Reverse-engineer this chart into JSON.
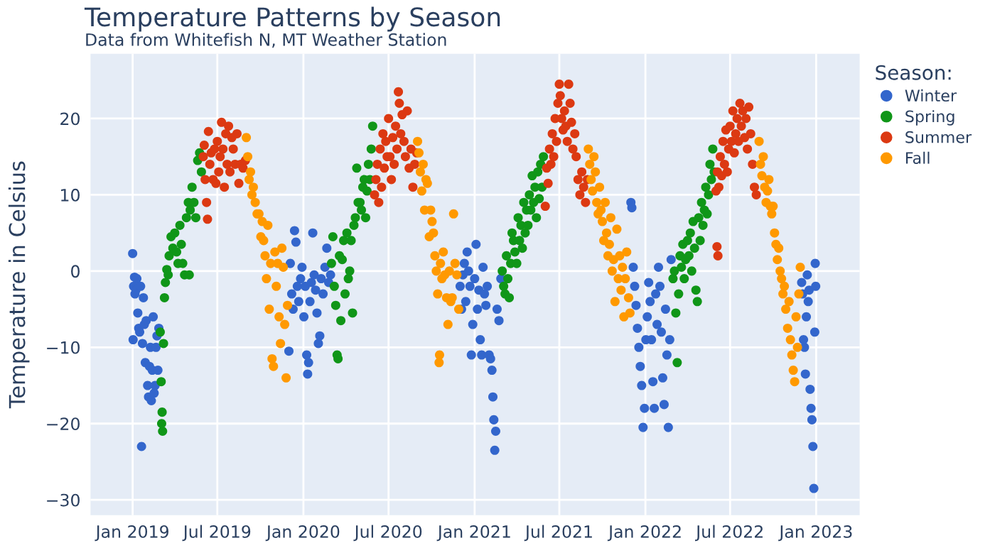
{
  "chart_data": {
    "type": "scatter",
    "title": "Temperature Patterns by Season",
    "subtitle": "Data from Whitefish N, MT Weather Station",
    "ylabel": "Temperature in Celsius",
    "legend_title": "Season:",
    "legend": "right",
    "grid": true,
    "marker": "circle",
    "xlim": [
      "2018-10-03",
      "2023-04-04"
    ],
    "ylim": [
      -32,
      28.5
    ],
    "xticks": [
      {
        "value": "2019-01-01",
        "label": "Jan 2019"
      },
      {
        "value": "2019-07-01",
        "label": "Jul 2019"
      },
      {
        "value": "2020-01-01",
        "label": "Jan 2020"
      },
      {
        "value": "2020-07-01",
        "label": "Jul 2020"
      },
      {
        "value": "2021-01-01",
        "label": "Jan 2021"
      },
      {
        "value": "2021-07-01",
        "label": "Jul 2021"
      },
      {
        "value": "2022-01-01",
        "label": "Jan 2022"
      },
      {
        "value": "2022-07-01",
        "label": "Jul 2022"
      },
      {
        "value": "2023-01-01",
        "label": "Jan 2023"
      }
    ],
    "yticks": [
      {
        "value": -30,
        "label": "−30"
      },
      {
        "value": -20,
        "label": "−20"
      },
      {
        "value": -10,
        "label": "−10"
      },
      0,
      10,
      20
    ],
    "series": [
      {
        "name": "Winter",
        "color": "#3366cc",
        "x": [
          "2019-01-01",
          "2019-01-02",
          "2019-01-03",
          "2019-01-05",
          "2019-01-06",
          "2019-01-08",
          "2019-01-10",
          "2019-01-12",
          "2019-01-14",
          "2019-01-16",
          "2019-01-18",
          "2019-01-20",
          "2019-01-22",
          "2019-01-24",
          "2019-01-26",
          "2019-01-28",
          "2019-01-30",
          "2019-02-02",
          "2019-02-04",
          "2019-02-06",
          "2019-02-08",
          "2019-02-10",
          "2019-02-12",
          "2019-02-14",
          "2019-02-16",
          "2019-02-18",
          "2019-02-20",
          "2019-02-22",
          "2019-02-24",
          "2019-02-26",
          "2019-12-01",
          "2019-12-04",
          "2019-12-07",
          "2019-12-10",
          "2019-12-13",
          "2019-12-16",
          "2019-12-19",
          "2019-12-22",
          "2019-12-26",
          "2019-12-29",
          "2020-01-02",
          "2020-01-05",
          "2020-01-08",
          "2020-01-10",
          "2020-01-12",
          "2020-01-15",
          "2020-01-18",
          "2020-01-21",
          "2020-01-24",
          "2020-01-27",
          "2020-01-30",
          "2020-02-02",
          "2020-02-05",
          "2020-02-08",
          "2020-02-12",
          "2020-02-16",
          "2020-02-20",
          "2020-02-24",
          "2020-02-28",
          "2020-12-01",
          "2020-12-04",
          "2020-12-07",
          "2020-12-10",
          "2020-12-13",
          "2020-12-16",
          "2020-12-19",
          "2020-12-22",
          "2020-12-25",
          "2020-12-28",
          "2021-01-01",
          "2021-01-04",
          "2021-01-07",
          "2021-01-10",
          "2021-01-13",
          "2021-01-16",
          "2021-01-19",
          "2021-01-22",
          "2021-01-25",
          "2021-01-28",
          "2021-02-01",
          "2021-02-04",
          "2021-02-07",
          "2021-02-09",
          "2021-02-11",
          "2021-02-13",
          "2021-02-15",
          "2021-02-18",
          "2021-02-22",
          "2021-02-26",
          "2021-12-01",
          "2021-12-03",
          "2021-12-06",
          "2021-12-09",
          "2021-12-12",
          "2021-12-15",
          "2021-12-18",
          "2021-12-21",
          "2021-12-24",
          "2021-12-27",
          "2021-12-30",
          "2022-01-02",
          "2022-01-05",
          "2022-01-08",
          "2022-01-11",
          "2022-01-14",
          "2022-01-17",
          "2022-01-20",
          "2022-01-23",
          "2022-01-26",
          "2022-01-29",
          "2022-02-01",
          "2022-02-04",
          "2022-02-07",
          "2022-02-10",
          "2022-02-13",
          "2022-02-16",
          "2022-02-19",
          "2022-02-22",
          "2022-02-25",
          "2022-12-01",
          "2022-12-03",
          "2022-12-05",
          "2022-12-07",
          "2022-12-09",
          "2022-12-11",
          "2022-12-13",
          "2022-12-15",
          "2022-12-17",
          "2022-12-19",
          "2022-12-21",
          "2022-12-23",
          "2022-12-25",
          "2022-12-27",
          "2022-12-29",
          "2022-12-30",
          "2022-12-31"
        ],
        "values": [
          2.3,
          -9,
          -2,
          -0.8,
          -3,
          -2.5,
          -1,
          -5.5,
          -7.5,
          -8,
          -2,
          -23,
          -9.5,
          -3.5,
          -7,
          -12,
          -6.5,
          -15,
          -16.5,
          -12.5,
          -10,
          -17,
          -13,
          -6,
          -16,
          -15,
          -10,
          -8.5,
          -13,
          -7.5,
          -10.5,
          1,
          -3,
          -5,
          5.3,
          3.8,
          -2,
          -4,
          -1,
          0.5,
          -6,
          -2,
          -11,
          -13.5,
          -12,
          -4,
          -1.5,
          5,
          -0.5,
          -2.5,
          -5.5,
          -9.5,
          -8.5,
          -1,
          -3,
          0.5,
          3,
          -1.5,
          -0.5,
          -2,
          -5,
          -0.5,
          1,
          -4,
          2.5,
          0,
          -2,
          -11,
          -7,
          -1,
          3.5,
          -5,
          -2.5,
          -9,
          -11,
          0.5,
          -3,
          -4.5,
          -2,
          -11,
          -11.5,
          -13,
          -16.5,
          -19.5,
          -23.5,
          -21,
          -5,
          -6.5,
          -1,
          9,
          8.3,
          0.5,
          -2,
          -4.5,
          -7.5,
          -10,
          -12.5,
          -15,
          -20.5,
          -18,
          -9,
          -6,
          -1.5,
          -4,
          -9,
          -14.5,
          -18,
          -3,
          -7,
          0.5,
          -2,
          -8,
          -14,
          -17.5,
          -5,
          -11,
          -20.5,
          -9,
          1.5,
          -1.5,
          -3,
          -9,
          -10,
          -13.5,
          -6,
          -0.5,
          -4,
          -2.5,
          -15.5,
          -18,
          -19.5,
          -23,
          -28.5,
          -8,
          1,
          -2
        ]
      },
      {
        "name": "Spring",
        "color": "#109618",
        "x": [
          "2019-03-01",
          "2019-03-03",
          "2019-03-04",
          "2019-03-05",
          "2019-03-06",
          "2019-03-08",
          "2019-03-10",
          "2019-03-12",
          "2019-03-15",
          "2019-03-18",
          "2019-03-20",
          "2019-03-24",
          "2019-03-28",
          "2019-04-01",
          "2019-04-05",
          "2019-04-08",
          "2019-04-12",
          "2019-04-15",
          "2019-04-18",
          "2019-04-22",
          "2019-04-26",
          "2019-04-30",
          "2019-05-02",
          "2019-05-04",
          "2019-05-08",
          "2019-05-12",
          "2019-05-16",
          "2019-05-20",
          "2019-05-24",
          "2019-05-28",
          "2020-03-01",
          "2020-03-04",
          "2020-03-07",
          "2020-03-10",
          "2020-03-13",
          "2020-03-15",
          "2020-03-18",
          "2020-03-21",
          "2020-03-24",
          "2020-03-27",
          "2020-03-30",
          "2020-04-03",
          "2020-04-06",
          "2020-04-09",
          "2020-04-12",
          "2020-04-15",
          "2020-04-18",
          "2020-04-21",
          "2020-04-24",
          "2020-04-27",
          "2020-05-01",
          "2020-05-04",
          "2020-05-07",
          "2020-05-10",
          "2020-05-13",
          "2020-05-16",
          "2020-05-19",
          "2020-05-22",
          "2020-05-25",
          "2020-05-28",
          "2021-03-01",
          "2021-03-04",
          "2021-03-07",
          "2021-03-10",
          "2021-03-13",
          "2021-03-16",
          "2021-03-19",
          "2021-03-22",
          "2021-03-25",
          "2021-03-28",
          "2021-04-01",
          "2021-04-04",
          "2021-04-07",
          "2021-04-10",
          "2021-04-13",
          "2021-04-16",
          "2021-04-19",
          "2021-04-22",
          "2021-04-25",
          "2021-04-28",
          "2021-05-01",
          "2021-05-04",
          "2021-05-07",
          "2021-05-10",
          "2021-05-13",
          "2021-05-16",
          "2021-05-19",
          "2021-05-22",
          "2021-05-25",
          "2021-05-28",
          "2022-03-01",
          "2022-03-04",
          "2022-03-07",
          "2022-03-10",
          "2022-03-13",
          "2022-03-16",
          "2022-03-19",
          "2022-03-22",
          "2022-03-25",
          "2022-03-28",
          "2022-04-01",
          "2022-04-04",
          "2022-04-07",
          "2022-04-10",
          "2022-04-13",
          "2022-04-16",
          "2022-04-19",
          "2022-04-22",
          "2022-04-25",
          "2022-04-28",
          "2022-05-01",
          "2022-05-04",
          "2022-05-07",
          "2022-05-10",
          "2022-05-13",
          "2022-05-16",
          "2022-05-19",
          "2022-05-22",
          "2022-05-25",
          "2022-05-28"
        ],
        "values": [
          -8,
          -14.5,
          -20,
          -18.5,
          -21,
          -9.5,
          -3.5,
          -1.5,
          0.2,
          -0.5,
          2,
          4.5,
          3,
          5,
          2.5,
          1,
          6,
          3.5,
          1,
          -0.5,
          7,
          9,
          -0.5,
          8,
          11,
          9,
          7,
          14.5,
          15.5,
          13,
          1,
          4.5,
          -2,
          -4.5,
          -11,
          -11.5,
          2,
          -6.5,
          1.5,
          4,
          -3,
          5,
          -1,
          0,
          4,
          -5.5,
          6,
          7,
          13.5,
          9,
          9,
          8,
          11,
          12,
          7,
          10.5,
          14,
          12,
          16,
          19,
          0,
          -2,
          -3,
          2,
          -1,
          -3.5,
          1,
          5,
          4,
          2.5,
          1,
          7,
          4,
          6,
          3,
          9,
          5,
          8,
          6,
          10,
          8,
          12.5,
          9,
          11,
          7,
          13,
          9.5,
          14,
          11,
          15,
          -1,
          0,
          -5.5,
          -12,
          -3,
          2,
          0.5,
          3.5,
          -1,
          1.5,
          4,
          2,
          5,
          0,
          6.5,
          3,
          -2.5,
          -4,
          7,
          4,
          9,
          6,
          8,
          11,
          7.5,
          10,
          14,
          12,
          16,
          13
        ]
      },
      {
        "name": "Summer",
        "color": "#dc3912",
        "x": [
          "2019-06-01",
          "2019-06-03",
          "2019-06-05",
          "2019-06-08",
          "2019-06-10",
          "2019-06-12",
          "2019-06-15",
          "2019-06-18",
          "2019-06-22",
          "2019-06-25",
          "2019-06-28",
          "2019-07-01",
          "2019-07-04",
          "2019-07-07",
          "2019-07-10",
          "2019-07-13",
          "2019-07-16",
          "2019-07-19",
          "2019-07-22",
          "2019-07-25",
          "2019-07-28",
          "2019-08-01",
          "2019-08-04",
          "2019-08-08",
          "2019-08-12",
          "2019-08-16",
          "2019-08-20",
          "2019-08-25",
          "2019-08-30",
          "2020-06-01",
          "2020-06-04",
          "2020-06-07",
          "2020-06-10",
          "2020-06-13",
          "2020-06-16",
          "2020-06-19",
          "2020-06-22",
          "2020-06-25",
          "2020-06-28",
          "2020-07-01",
          "2020-07-04",
          "2020-07-07",
          "2020-07-10",
          "2020-07-13",
          "2020-07-16",
          "2020-07-19",
          "2020-07-22",
          "2020-07-24",
          "2020-07-27",
          "2020-07-30",
          "2020-08-03",
          "2020-08-06",
          "2020-08-10",
          "2020-08-14",
          "2020-08-18",
          "2020-08-22",
          "2020-08-26",
          "2020-08-30",
          "2021-06-01",
          "2021-06-04",
          "2021-06-07",
          "2021-06-10",
          "2021-06-13",
          "2021-06-16",
          "2021-06-19",
          "2021-06-22",
          "2021-06-25",
          "2021-06-28",
          "2021-07-01",
          "2021-07-03",
          "2021-07-06",
          "2021-07-09",
          "2021-07-12",
          "2021-07-15",
          "2021-07-18",
          "2021-07-21",
          "2021-07-24",
          "2021-07-27",
          "2021-07-30",
          "2021-08-03",
          "2021-08-06",
          "2021-08-10",
          "2021-08-14",
          "2021-08-18",
          "2021-08-22",
          "2021-08-26",
          "2021-08-30",
          "2022-06-01",
          "2022-06-03",
          "2022-06-04",
          "2022-06-05",
          "2022-06-07",
          "2022-06-10",
          "2022-06-13",
          "2022-06-16",
          "2022-06-19",
          "2022-06-22",
          "2022-06-25",
          "2022-06-28",
          "2022-07-01",
          "2022-07-04",
          "2022-07-07",
          "2022-07-10",
          "2022-07-13",
          "2022-07-16",
          "2022-07-19",
          "2022-07-22",
          "2022-07-25",
          "2022-07-28",
          "2022-08-01",
          "2022-08-04",
          "2022-08-07",
          "2022-08-10",
          "2022-08-14",
          "2022-08-18",
          "2022-08-22",
          "2022-08-26"
        ],
        "values": [
          15,
          16.5,
          12,
          9,
          6.8,
          18.3,
          14,
          15.5,
          12,
          16,
          11.5,
          17,
          13,
          15,
          19.5,
          16,
          11,
          18,
          14,
          19,
          13,
          17.5,
          16,
          14,
          18,
          11.5,
          14,
          13.5,
          14.5,
          10,
          12,
          14,
          9,
          16,
          11,
          18,
          13.5,
          17,
          15,
          20,
          15,
          12,
          17.5,
          14,
          19,
          16,
          23.5,
          22,
          18,
          20.5,
          17,
          15,
          21,
          13.5,
          16,
          11,
          14,
          15.5,
          8.5,
          13.5,
          11.5,
          16,
          14,
          18,
          15,
          20,
          17,
          22,
          24.5,
          23,
          20,
          18.5,
          21,
          19,
          17,
          24.5,
          22,
          19.5,
          16,
          18,
          15,
          12,
          10,
          13,
          11,
          9,
          12,
          10.5,
          3.2,
          13,
          2,
          11,
          15,
          12.5,
          17,
          14,
          18.5,
          13,
          16,
          19,
          17,
          21,
          15.5,
          18,
          20,
          17,
          22,
          19,
          21,
          17.5,
          20,
          16,
          21.5,
          18,
          14,
          11,
          10
        ]
      },
      {
        "name": "Fall",
        "color": "#ff9900",
        "x": [
          "2019-09-01",
          "2019-09-04",
          "2019-09-07",
          "2019-09-10",
          "2019-09-13",
          "2019-09-16",
          "2019-09-20",
          "2019-09-24",
          "2019-09-28",
          "2019-10-02",
          "2019-10-05",
          "2019-10-08",
          "2019-10-11",
          "2019-10-14",
          "2019-10-17",
          "2019-10-20",
          "2019-10-23",
          "2019-10-26",
          "2019-10-29",
          "2019-11-01",
          "2019-11-04",
          "2019-11-07",
          "2019-11-10",
          "2019-11-13",
          "2019-11-16",
          "2019-11-19",
          "2019-11-22",
          "2019-11-25",
          "2019-11-28",
          "2020-09-01",
          "2020-09-04",
          "2020-09-07",
          "2020-09-10",
          "2020-09-13",
          "2020-09-16",
          "2020-09-19",
          "2020-09-22",
          "2020-09-26",
          "2020-09-29",
          "2020-10-02",
          "2020-10-05",
          "2020-10-08",
          "2020-10-11",
          "2020-10-14",
          "2020-10-17",
          "2020-10-18",
          "2020-10-20",
          "2020-10-23",
          "2020-10-26",
          "2020-10-29",
          "2020-11-02",
          "2020-11-05",
          "2020-11-08",
          "2020-11-11",
          "2020-11-14",
          "2020-11-17",
          "2020-11-20",
          "2020-11-24",
          "2020-11-28",
          "2021-09-01",
          "2021-09-04",
          "2021-09-07",
          "2021-09-10",
          "2021-09-13",
          "2021-09-16",
          "2021-09-19",
          "2021-09-22",
          "2021-09-25",
          "2021-09-28",
          "2021-10-01",
          "2021-10-04",
          "2021-10-07",
          "2021-10-10",
          "2021-10-13",
          "2021-10-16",
          "2021-10-19",
          "2021-10-22",
          "2021-10-25",
          "2021-10-28",
          "2021-11-01",
          "2021-11-04",
          "2021-11-07",
          "2021-11-10",
          "2021-11-13",
          "2021-11-16",
          "2021-11-19",
          "2021-11-22",
          "2021-11-26",
          "2021-11-29",
          "2022-09-01",
          "2022-09-04",
          "2022-09-07",
          "2022-09-10",
          "2022-09-13",
          "2022-09-16",
          "2022-09-19",
          "2022-09-22",
          "2022-09-25",
          "2022-09-28",
          "2022-10-01",
          "2022-10-04",
          "2022-10-07",
          "2022-10-10",
          "2022-10-13",
          "2022-10-16",
          "2022-10-19",
          "2022-10-22",
          "2022-10-25",
          "2022-10-28",
          "2022-11-01",
          "2022-11-04",
          "2022-11-07",
          "2022-11-10",
          "2022-11-13",
          "2022-11-16",
          "2022-11-19",
          "2022-11-22",
          "2022-11-25",
          "2022-11-28"
        ],
        "values": [
          17.5,
          15,
          12,
          13,
          10,
          11,
          9,
          7.5,
          7.5,
          4.5,
          6.5,
          4,
          2,
          -1,
          6,
          -5,
          1,
          -11.5,
          -12.5,
          2.5,
          -2,
          1,
          -6,
          -9.5,
          3,
          0.5,
          -7,
          -14,
          -4.5,
          17,
          15.5,
          13,
          10.5,
          14,
          8,
          12,
          11.5,
          4.5,
          8,
          6.5,
          5,
          2,
          0,
          -3,
          -12,
          -11,
          1,
          -1,
          2.5,
          -0.5,
          -3.5,
          -7,
          0,
          -4,
          -3.5,
          7.5,
          1,
          -0.5,
          -5,
          16,
          14,
          12,
          10.5,
          15,
          13,
          9,
          7.5,
          11,
          8,
          6.5,
          4,
          9,
          5,
          2,
          3.5,
          7,
          0,
          1.5,
          -4,
          5.5,
          -1,
          2,
          -2.5,
          0.5,
          -6,
          -1,
          2.5,
          -3.5,
          -5.5,
          17,
          14,
          12.5,
          15,
          11,
          9,
          10.5,
          12,
          8.5,
          7.5,
          8.5,
          5,
          3.5,
          1.5,
          3,
          0,
          -1,
          -3,
          -2,
          -5,
          -7.5,
          -4,
          -9,
          -11,
          -13,
          -14.5,
          -6,
          -10,
          -3,
          0.5
        ]
      }
    ]
  }
}
